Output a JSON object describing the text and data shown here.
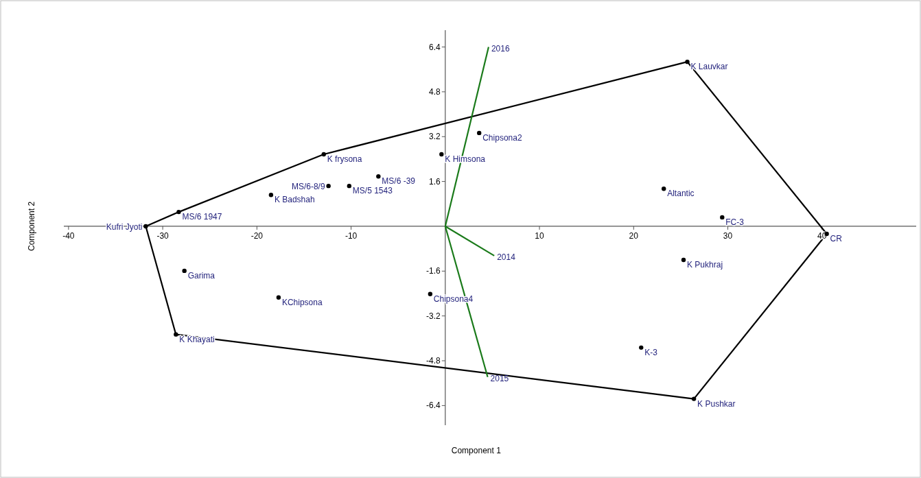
{
  "chart_data": {
    "type": "scatter",
    "xlabel": "Component 1",
    "ylabel": "Component 2",
    "xlim": [
      -40.5,
      50
    ],
    "ylim": [
      -7.1,
      7.0
    ],
    "xticks": [
      -40,
      -30,
      -20,
      -10,
      10,
      20,
      30,
      40
    ],
    "yticks": [
      -6.4,
      -4.8,
      -3.2,
      -1.6,
      1.6,
      3.2,
      4.8,
      6.4
    ],
    "grid": false,
    "legend": false,
    "series": [
      {
        "type": "line",
        "color": "#000000",
        "marker": "none",
        "x": [
          -31.8,
          -28.3,
          -12.9,
          25.7,
          40.5
        ],
        "values": [
          0,
          0.51,
          2.57,
          5.87,
          -0.27
        ]
      },
      {
        "type": "line",
        "color": "#000000",
        "marker": "none",
        "x": [
          -31.8,
          -28.6,
          26.4,
          40.5
        ],
        "values": [
          0,
          -3.86,
          -6.16,
          -0.27
        ]
      },
      {
        "type": "line",
        "name": "2016",
        "color": "#1a7a1a",
        "marker": "none",
        "x": [
          0,
          4.6
        ],
        "values": [
          0,
          6.4
        ]
      },
      {
        "type": "line",
        "name": "2014",
        "color": "#1a7a1a",
        "marker": "none",
        "x": [
          0,
          5.2
        ],
        "values": [
          0,
          -1.05
        ]
      },
      {
        "type": "line",
        "name": "2015",
        "color": "#1a7a1a",
        "marker": "none",
        "x": [
          0,
          4.5
        ],
        "values": [
          0,
          -5.38
        ]
      },
      {
        "color": "#000000",
        "marker": "circle",
        "x": [
          -31.8,
          -28.3,
          -12.9,
          -18.5,
          -12.4,
          -10.2,
          -7.1,
          -27.7,
          -17.7,
          -1.6,
          -28.6,
          3.6,
          -0.4,
          25.7,
          23.2,
          29.4,
          40.5,
          25.3,
          20.8,
          26.4
        ],
        "values": [
          0,
          0.51,
          2.57,
          1.12,
          1.44,
          1.44,
          1.78,
          -1.59,
          -2.54,
          -2.42,
          -3.86,
          3.33,
          2.57,
          5.87,
          1.34,
          0.32,
          -0.27,
          -1.2,
          -4.33,
          -6.16
        ]
      }
    ],
    "annotations": [
      {
        "text": "Kufri  Jyoti",
        "x": -31.8,
        "y": 0
      },
      {
        "text": "MS/6 1947",
        "x": -28.3,
        "y": 0.51
      },
      {
        "text": "K frysona",
        "x": -12.9,
        "y": 2.57
      },
      {
        "text": "K Badshah",
        "x": -18.5,
        "y": 1.12
      },
      {
        "text": "MS/6-8/9",
        "x": -12.4,
        "y": 1.44
      },
      {
        "text": "MS/5 1543",
        "x": -10.2,
        "y": 1.44
      },
      {
        "text": "MS/6 -39",
        "x": -7.1,
        "y": 1.78
      },
      {
        "text": "Garima",
        "x": -27.7,
        "y": -1.59
      },
      {
        "text": "KChipsona",
        "x": -17.7,
        "y": -2.54
      },
      {
        "text": "Chipsona4",
        "x": -1.6,
        "y": -2.42
      },
      {
        "text": "K Khayati",
        "x": -28.6,
        "y": -3.86
      },
      {
        "text": "Chipsona2",
        "x": 3.6,
        "y": 3.33
      },
      {
        "text": "K Himsona",
        "x": -0.4,
        "y": 2.57
      },
      {
        "text": "K Lauvkar",
        "x": 25.7,
        "y": 5.87
      },
      {
        "text": "Altantic",
        "x": 23.2,
        "y": 1.34
      },
      {
        "text": "FC-3",
        "x": 29.4,
        "y": 0.32
      },
      {
        "text": "CR",
        "x": 40.5,
        "y": -0.27
      },
      {
        "text": "K Pukhraj",
        "x": 25.3,
        "y": -1.2
      },
      {
        "text": "K-3",
        "x": 20.8,
        "y": -4.33
      },
      {
        "text": "K Pushkar",
        "x": 26.4,
        "y": -6.16
      }
    ]
  }
}
